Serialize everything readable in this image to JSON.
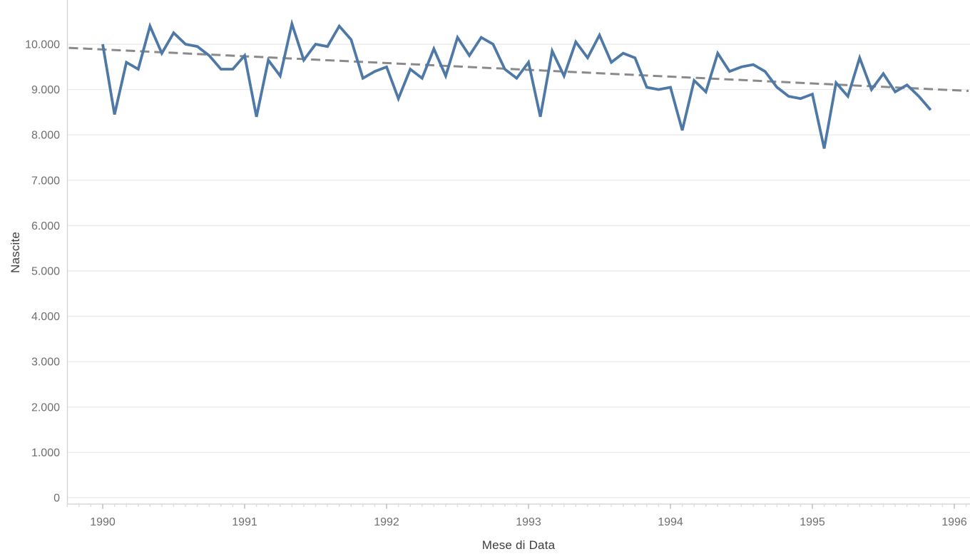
{
  "page": {
    "background_color": "#ffffff"
  },
  "chart_data": {
    "type": "line",
    "title": "",
    "xlabel": "Mese di Data",
    "ylabel": "Nascite",
    "grid": "horizontal-only",
    "legend": "none",
    "ylim": [
      0,
      11000
    ],
    "x_tick_labels": [
      "1990",
      "1991",
      "1992",
      "1993",
      "1994",
      "1995",
      "1996"
    ],
    "x_tick_month_index": [
      0,
      12,
      24,
      36,
      48,
      60,
      72
    ],
    "y_tick_values": [
      0,
      1000,
      2000,
      3000,
      4000,
      5000,
      6000,
      7000,
      8000,
      9000,
      10000
    ],
    "y_tick_labels": [
      "0",
      "1.000",
      "2.000",
      "3.000",
      "4.000",
      "5.000",
      "6.000",
      "7.000",
      "8.000",
      "9.000",
      "10.000"
    ],
    "colors": {
      "series_blue": "#4e79a7",
      "trend_gray": "#8a8a8a",
      "gridline": "#ebebeb",
      "axis_line": "#d7d7d7",
      "year_tick": "#bdbdbd",
      "month_tick": "#dcdcdc",
      "tick_label": "#6e6e6e",
      "axis_title": "#3d3d3d"
    },
    "series": [
      {
        "name": "Nascite",
        "color": "#4e79a7",
        "line_width": 3.8,
        "months": [
          "1990-01",
          "1990-02",
          "1990-03",
          "1990-04",
          "1990-05",
          "1990-06",
          "1990-07",
          "1990-08",
          "1990-09",
          "1990-10",
          "1990-11",
          "1990-12",
          "1991-01",
          "1991-02",
          "1991-03",
          "1991-04",
          "1991-05",
          "1991-06",
          "1991-07",
          "1991-08",
          "1991-09",
          "1991-10",
          "1991-11",
          "1991-12",
          "1992-01",
          "1992-02",
          "1992-03",
          "1992-04",
          "1992-05",
          "1992-06",
          "1992-07",
          "1992-08",
          "1992-09",
          "1992-10",
          "1992-11",
          "1992-12",
          "1993-01",
          "1993-02",
          "1993-03",
          "1993-04",
          "1993-05",
          "1993-06",
          "1993-07",
          "1993-08",
          "1993-09",
          "1993-10",
          "1993-11",
          "1993-12",
          "1994-01",
          "1994-02",
          "1994-03",
          "1994-04",
          "1994-05",
          "1994-06",
          "1994-07",
          "1994-08",
          "1994-09",
          "1994-10",
          "1994-11",
          "1994-12",
          "1995-01",
          "1995-02",
          "1995-03",
          "1995-04",
          "1995-05",
          "1995-06",
          "1995-07",
          "1995-08",
          "1995-09",
          "1995-10",
          "1995-11"
        ],
        "values": [
          10000,
          8450,
          9600,
          9450,
          10400,
          9800,
          10250,
          10000,
          9950,
          9750,
          9450,
          9450,
          9750,
          8400,
          9650,
          9300,
          10450,
          9650,
          10000,
          9950,
          10400,
          10100,
          9250,
          9400,
          9500,
          8800,
          9450,
          9250,
          9900,
          9300,
          10150,
          9750,
          10150,
          10000,
          9450,
          9250,
          9600,
          8400,
          9850,
          9300,
          10050,
          9700,
          10200,
          9600,
          9800,
          9700,
          9050,
          9000,
          9050,
          8100,
          9200,
          8950,
          9800,
          9400,
          9500,
          9550,
          9400,
          9050,
          8850,
          8800,
          8900,
          7700,
          9150,
          8850,
          9700,
          9000,
          9350,
          8950,
          9100,
          8850,
          8550
        ]
      }
    ],
    "trend_line": {
      "style": "dashed",
      "color": "#8a8a8a",
      "line_width": 3,
      "dash": [
        13,
        7
      ],
      "value_at_left_edge": 9920,
      "value_at_right_edge": 8970
    }
  }
}
